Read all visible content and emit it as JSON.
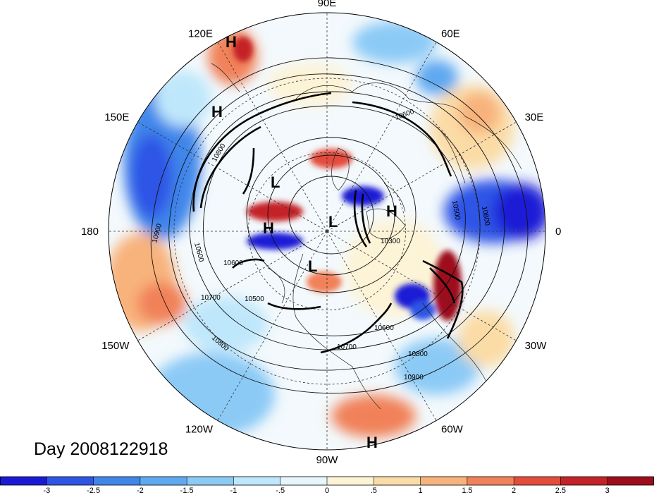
{
  "map": {
    "projection": "north-polar-stereographic",
    "day_label": "Day 2008122918",
    "longitude_labels": [
      {
        "text": "90E",
        "lon": 90
      },
      {
        "text": "60E",
        "lon": 60
      },
      {
        "text": "30E",
        "lon": 30
      },
      {
        "text": "0",
        "lon": 0
      },
      {
        "text": "30W",
        "lon": -30
      },
      {
        "text": "60W",
        "lon": -60
      },
      {
        "text": "90W",
        "lon": -90
      },
      {
        "text": "120W",
        "lon": -120
      },
      {
        "text": "150W",
        "lon": -150
      },
      {
        "text": "180",
        "lon": 180
      },
      {
        "text": "150E",
        "lon": 150
      },
      {
        "text": "120E",
        "lon": 120
      }
    ],
    "pressure_centers": [
      "H",
      "H",
      "L",
      "L",
      "H",
      "H",
      "L",
      "H"
    ],
    "contour_labels": [
      "10800",
      "10900",
      "10600",
      "10700",
      "10500",
      "10600",
      "10700",
      "10800",
      "10600",
      "10800",
      "10900",
      "10600",
      "10500",
      "10800",
      "10300"
    ]
  },
  "colorbar": {
    "ticks": [
      "-3",
      "-2.5",
      "-2",
      "-1.5",
      "-1",
      "-.5",
      "0",
      ".5",
      "1",
      "1.5",
      "2",
      "2.5",
      "3"
    ],
    "colors": [
      "#1a1ad6",
      "#2f55e6",
      "#3f86ea",
      "#5fa9f0",
      "#8ccaf6",
      "#bfe7fb",
      "#e6f6fd",
      "#fdf3d6",
      "#fbdca6",
      "#f8b27c",
      "#f18158",
      "#e44c3c",
      "#c42227",
      "#9d0d1e"
    ]
  }
}
